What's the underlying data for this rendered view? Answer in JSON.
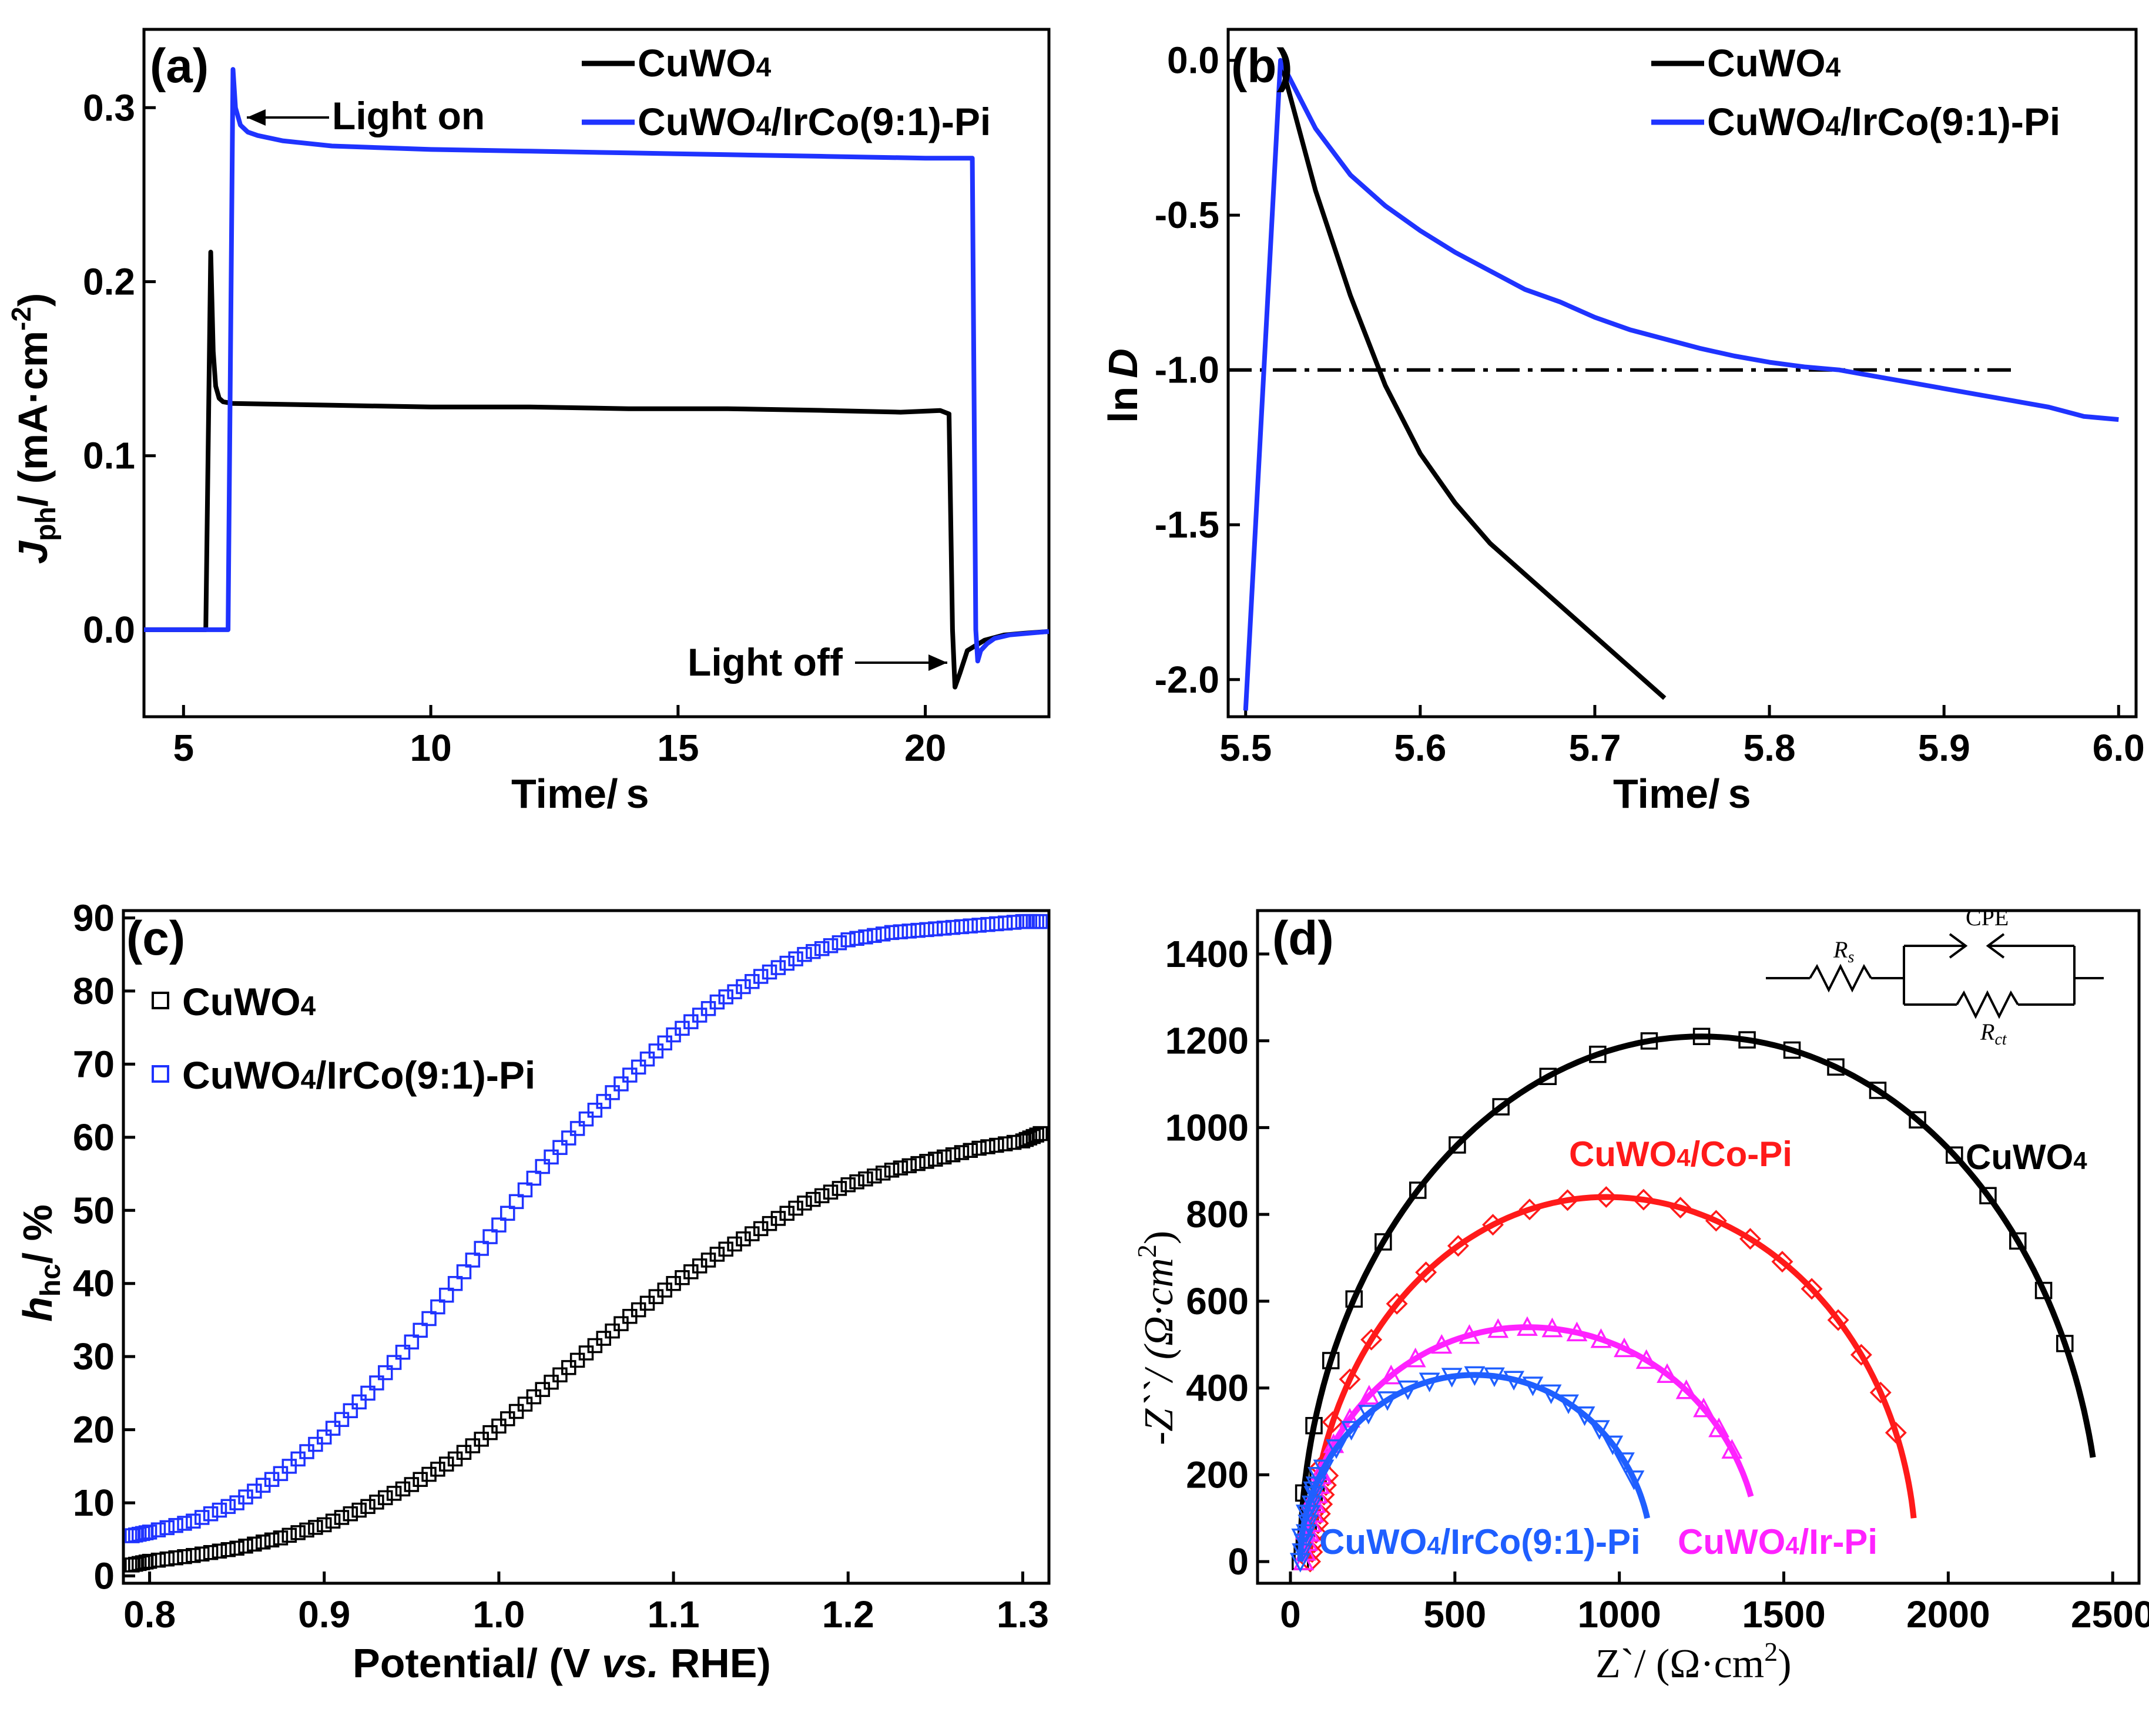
{
  "chart_data": [
    {
      "panel": "(a)",
      "type": "line",
      "xlabel_main": "Time/",
      "xlabel_unit": "s",
      "ylabel_sym": "J",
      "ylabel_sub": "ph",
      "ylabel_rest": "/ (mA·cm",
      "ylabel_sup": "-2",
      "ylabel_close": ")",
      "xlim": [
        4.2,
        22.5
      ],
      "ylim": [
        -0.05,
        0.345
      ],
      "xticks": [
        5,
        10,
        15,
        20
      ],
      "xtick_labels": [
        "5",
        "10",
        "15",
        "20"
      ],
      "yticks": [
        0.0,
        0.1,
        0.2,
        0.3
      ],
      "ytick_labels": [
        "0.0",
        "0.1",
        "0.2",
        "0.3"
      ],
      "legend_position": "top-right",
      "annotations": {
        "light_on": "Light on",
        "light_off": "Light off"
      },
      "series": [
        {
          "name": "CuWO4",
          "legend_main": "CuWO",
          "legend_sub": "4",
          "color": "#000000",
          "x": [
            4.2,
            5.45,
            5.55,
            5.6,
            5.65,
            5.72,
            5.8,
            6.0,
            8,
            10,
            12,
            14,
            16,
            18,
            19.5,
            20.3,
            20.48,
            20.55,
            20.6,
            20.7,
            20.85,
            21.2,
            21.6,
            22,
            22.5
          ],
          "y": [
            0.0,
            0.0,
            0.217,
            0.16,
            0.14,
            0.133,
            0.131,
            0.13,
            0.129,
            0.128,
            0.128,
            0.127,
            0.127,
            0.126,
            0.125,
            0.126,
            0.124,
            0.0,
            -0.033,
            -0.025,
            -0.012,
            -0.006,
            -0.003,
            -0.002,
            -0.001
          ]
        },
        {
          "name": "CuWO4/IrCo(9:1)-Pi",
          "legend_main": "CuWO",
          "legend_sub": "4",
          "legend_rest": "/IrCo(9:1)-Pi",
          "color": "#1f33ff",
          "x": [
            4.2,
            5.9,
            6.0,
            6.05,
            6.15,
            6.3,
            6.5,
            7,
            8,
            10,
            12,
            14,
            16,
            18,
            20,
            20.95,
            21.02,
            21.06,
            21.12,
            21.25,
            21.4,
            21.7,
            22.1,
            22.5
          ],
          "y": [
            0.0,
            0.0,
            0.322,
            0.3,
            0.29,
            0.286,
            0.284,
            0.281,
            0.278,
            0.276,
            0.275,
            0.274,
            0.273,
            0.272,
            0.271,
            0.271,
            0.0,
            -0.018,
            -0.012,
            -0.008,
            -0.005,
            -0.003,
            -0.002,
            -0.001
          ]
        }
      ]
    },
    {
      "panel": "(b)",
      "type": "line",
      "xlabel_main": "Time/",
      "xlabel_unit": "s",
      "ylabel_prefix": "ln",
      "ylabel_sym": "D",
      "xlim": [
        5.49,
        6.01
      ],
      "ylim": [
        -2.12,
        0.1
      ],
      "xticks": [
        5.5,
        5.6,
        5.7,
        5.8,
        5.9,
        6.0
      ],
      "xtick_labels": [
        "5.5",
        "5.6",
        "5.7",
        "5.8",
        "5.9",
        "6.0"
      ],
      "yticks": [
        0.0,
        -0.5,
        -1.0,
        -1.5,
        -2.0
      ],
      "ytick_labels": [
        "0.0",
        "-0.5",
        "-1.0",
        "-1.5",
        "-2.0"
      ],
      "reference_line": {
        "y": -1.0,
        "x_start": 5.49,
        "x_end": 5.94,
        "style": "dash-dot"
      },
      "legend_position": "top-right",
      "series": [
        {
          "name": "CuWO4",
          "legend_main": "CuWO",
          "legend_sub": "4",
          "color": "#000000",
          "x": [
            5.52,
            5.54,
            5.56,
            5.58,
            5.6,
            5.62,
            5.64,
            5.66,
            5.68,
            5.7,
            5.72,
            5.74
          ],
          "y": [
            0.0,
            -0.42,
            -0.76,
            -1.05,
            -1.27,
            -1.43,
            -1.56,
            -1.66,
            -1.76,
            -1.86,
            -1.96,
            -2.06
          ]
        },
        {
          "name": "CuWO4/IrCo(9:1)-Pi",
          "legend_main": "CuWO",
          "legend_sub": "4",
          "legend_rest": "/IrCo(9:1)-Pi",
          "color": "#1f33ff",
          "x": [
            5.5,
            5.52,
            5.54,
            5.56,
            5.58,
            5.6,
            5.62,
            5.64,
            5.66,
            5.68,
            5.7,
            5.72,
            5.74,
            5.76,
            5.78,
            5.8,
            5.82,
            5.84,
            5.86,
            5.88,
            5.9,
            5.92,
            5.94,
            5.96,
            5.98,
            6.0
          ],
          "y": [
            -2.1,
            0.0,
            -0.22,
            -0.37,
            -0.47,
            -0.55,
            -0.62,
            -0.68,
            -0.74,
            -0.78,
            -0.83,
            -0.87,
            -0.9,
            -0.93,
            -0.955,
            -0.975,
            -0.99,
            -1.0,
            -1.02,
            -1.04,
            -1.06,
            -1.08,
            -1.1,
            -1.12,
            -1.15,
            -1.16
          ]
        }
      ]
    },
    {
      "panel": "(c)",
      "type": "scatter",
      "xlabel_main": "Potential/ (V ",
      "xlabel_italic": "vs.",
      "xlabel_end": " RHE)",
      "ylabel_sym": "h",
      "ylabel_sub": "hc",
      "ylabel_rest": "/ %",
      "xlim": [
        0.785,
        1.315
      ],
      "ylim": [
        -1,
        91
      ],
      "xticks": [
        0.8,
        0.9,
        1.0,
        1.1,
        1.2,
        1.3
      ],
      "xtick_labels": [
        "0.8",
        "0.9",
        "1.0",
        "1.1",
        "1.2",
        "1.3"
      ],
      "yticks": [
        0,
        10,
        20,
        30,
        40,
        50,
        60,
        70,
        80,
        90
      ],
      "ytick_labels": [
        "0",
        "10",
        "20",
        "30",
        "40",
        "50",
        "60",
        "70",
        "80",
        "90"
      ],
      "marker": "open-square",
      "legend_position": "top-left",
      "series": [
        {
          "name": "CuWO4",
          "legend_main": "CuWO",
          "legend_sub": "4",
          "color": "#000000",
          "x": [
            0.79,
            0.8,
            0.825,
            0.85,
            0.875,
            0.9,
            0.925,
            0.95,
            0.975,
            1.0,
            1.025,
            1.05,
            1.075,
            1.1,
            1.125,
            1.15,
            1.175,
            1.2,
            1.225,
            1.25,
            1.275,
            1.3,
            1.31
          ],
          "y": [
            1.5,
            2.0,
            2.8,
            3.8,
            5.2,
            7.0,
            9.5,
            12.5,
            16.0,
            20.5,
            25.5,
            30.5,
            35.5,
            40.0,
            44.0,
            47.5,
            51.0,
            53.5,
            55.5,
            57.0,
            58.5,
            59.5,
            60.5
          ]
        },
        {
          "name": "CuWO4/IrCo(9:1)-Pi",
          "legend_main": "CuWO",
          "legend_sub": "4",
          "legend_rest": "/IrCo(9:1)-Pi",
          "color": "#1f33ff",
          "x": [
            0.79,
            0.8,
            0.825,
            0.85,
            0.875,
            0.9,
            0.925,
            0.95,
            0.975,
            1.0,
            1.025,
            1.05,
            1.075,
            1.1,
            1.125,
            1.15,
            1.175,
            1.2,
            1.225,
            1.25,
            1.275,
            1.3,
            1.31
          ],
          "y": [
            5.5,
            6.0,
            7.5,
            10.0,
            14.0,
            19.0,
            25.0,
            32.0,
            40.0,
            48.0,
            56.0,
            62.5,
            68.5,
            74.0,
            78.5,
            82.0,
            85.0,
            87.0,
            88.0,
            88.5,
            89.0,
            89.5,
            89.5
          ]
        }
      ]
    },
    {
      "panel": "(d)",
      "type": "scatter",
      "xlabel": "Z`/ (Ω·cm",
      "xlabel_sup": "2",
      "xlabel_close": ")",
      "ylabel": "-Z``/ (Ω·cm",
      "ylabel_sup": "2",
      "ylabel_close": ")",
      "xlim": [
        -100,
        2580
      ],
      "ylim": [
        -50,
        1500
      ],
      "xticks": [
        0,
        500,
        1000,
        1500,
        2000,
        2500
      ],
      "xtick_labels": [
        "0",
        "500",
        "1000",
        "1500",
        "2000",
        "2500"
      ],
      "yticks": [
        0,
        200,
        400,
        600,
        800,
        1000,
        1200,
        1400
      ],
      "ytick_labels": [
        "0",
        "200",
        "400",
        "600",
        "800",
        "1000",
        "1200",
        "1400"
      ],
      "circuit": {
        "rs_label": "R",
        "rs_sub": "s",
        "cpe_label": "CPE",
        "rct_label": "R",
        "rct_sub": "ct"
      },
      "series": [
        {
          "name": "CuWO4",
          "label_main": "CuWO",
          "label_sub": "4",
          "label_rest": "",
          "color": "#000000",
          "marker": "open-square",
          "x_start": 30,
          "x_end": 2440,
          "peak_x": 1250,
          "peak_y": 1210,
          "end_y": 240
        },
        {
          "name": "CuWO4/Co-Pi",
          "label_main": "CuWO",
          "label_sub": "4",
          "label_rest": "/Co-Pi",
          "color": "#ff1a1a",
          "marker": "open-diamond",
          "x_start": 60,
          "x_end": 1895,
          "peak_x": 960,
          "peak_y": 840,
          "end_y": 100
        },
        {
          "name": "CuWO4/Ir-Pi",
          "label_main": "CuWO",
          "label_sub": "4",
          "label_rest": "/Ir-Pi",
          "color": "#ff22ff",
          "marker": "open-triangle-up",
          "x_start": 40,
          "x_end": 1400,
          "peak_x": 720,
          "peak_y": 540,
          "end_y": 150
        },
        {
          "name": "CuWO4/IrCo(9:1)-Pi",
          "label_main": "CuWO",
          "label_sub": "4",
          "label_rest": "/IrCo(9:1)-Pi",
          "color": "#1f5fff",
          "marker": "open-triangle-down",
          "x_start": 30,
          "x_end": 1085,
          "peak_x": 560,
          "peak_y": 430,
          "end_y": 100
        }
      ]
    }
  ]
}
